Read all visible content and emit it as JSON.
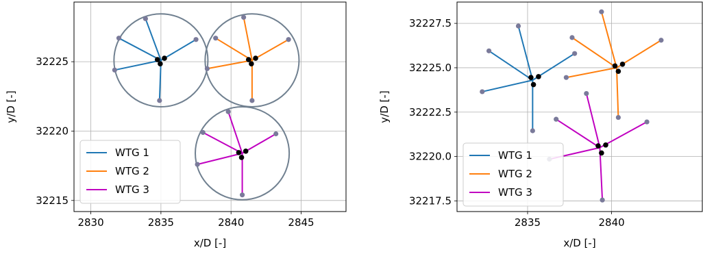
{
  "chart_data": [
    {
      "type": "scatter",
      "title": "",
      "xlabel": "x/D [-]",
      "ylabel": "y/D [-]",
      "xlim": [
        2828.8,
        2848.2
      ],
      "ylim": [
        32214.2,
        32229.3
      ],
      "xticks": [
        "2830",
        "2835",
        "2840",
        "2845"
      ],
      "xtick_values": [
        2830,
        2835,
        2840,
        2845
      ],
      "yticks": [
        "32215",
        "32220",
        "32225"
      ],
      "ytick_values": [
        32215,
        32220,
        32225
      ],
      "grid": true,
      "legend": {
        "placement": "lower-left",
        "entries": [
          "WTG 1",
          "WTG 2",
          "WTG 3"
        ]
      },
      "rotor_circle_color": "#708090",
      "series": [
        {
          "name": "WTG 1",
          "color": "#1f77b4",
          "hub": [
            2835.0,
            32225.1
          ],
          "hub_markers": [
            [
              2834.75,
              32225.15
            ],
            [
              2835.25,
              32225.25
            ],
            [
              2834.95,
              32224.85
            ]
          ],
          "blade_tips": [
            [
              2831.7,
              32224.4
            ],
            [
              2832.0,
              32226.7
            ],
            [
              2833.9,
              32228.1
            ],
            [
              2837.5,
              32226.6
            ],
            [
              2834.9,
              32222.2
            ]
          ],
          "rotor_radius": 3.35
        },
        {
          "name": "WTG 2",
          "color": "#ff7f0e",
          "hub": [
            2841.5,
            32225.1
          ],
          "hub_markers": [
            [
              2841.25,
              32225.15
            ],
            [
              2841.75,
              32225.25
            ],
            [
              2841.45,
              32224.85
            ]
          ],
          "blade_tips": [
            [
              2838.3,
              32224.5
            ],
            [
              2838.9,
              32226.7
            ],
            [
              2840.9,
              32228.2
            ],
            [
              2844.1,
              32226.6
            ],
            [
              2841.5,
              32222.2
            ]
          ],
          "rotor_radius": 3.35
        },
        {
          "name": "WTG 3",
          "color": "#c000c0",
          "hub": [
            2840.8,
            32218.4
          ],
          "hub_markers": [
            [
              2840.55,
              32218.45
            ],
            [
              2841.05,
              32218.55
            ],
            [
              2840.75,
              32218.1
            ]
          ],
          "blade_tips": [
            [
              2837.6,
              32217.6
            ],
            [
              2838.0,
              32219.9
            ],
            [
              2839.8,
              32221.4
            ],
            [
              2843.2,
              32219.8
            ],
            [
              2840.8,
              32215.4
            ]
          ],
          "rotor_radius": 3.35
        }
      ]
    },
    {
      "type": "scatter",
      "title": "",
      "xlabel": "x/D [-]",
      "ylabel": "y/D [-]",
      "xlim": [
        2830.8,
        2845.4
      ],
      "ylim": [
        32216.9,
        32228.7
      ],
      "xticks": [
        "2835",
        "2840"
      ],
      "xtick_values": [
        2835,
        2840
      ],
      "yticks": [
        "32217.5",
        "32220.0",
        "32222.5",
        "32225.0",
        "32227.5"
      ],
      "ytick_values": [
        32217.5,
        32220.0,
        32222.5,
        32225.0,
        32227.5
      ],
      "grid": true,
      "legend": {
        "placement": "lower-left",
        "entries": [
          "WTG 1",
          "WTG 2",
          "WTG 3"
        ]
      },
      "series": [
        {
          "name": "WTG 1",
          "color": "#1f77b4",
          "hub": [
            2835.3,
            32224.3
          ],
          "hub_markers": [
            [
              2835.2,
              32224.45
            ],
            [
              2835.65,
              32224.5
            ],
            [
              2835.35,
              32224.05
            ]
          ],
          "blade_tips": [
            [
              2832.3,
              32223.65
            ],
            [
              2832.7,
              32225.95
            ],
            [
              2834.45,
              32227.35
            ],
            [
              2837.8,
              32225.8
            ],
            [
              2835.3,
              32221.45
            ]
          ]
        },
        {
          "name": "WTG 2",
          "color": "#ff7f0e",
          "hub": [
            2840.3,
            32225.0
          ],
          "hub_markers": [
            [
              2840.2,
              32225.1
            ],
            [
              2840.65,
              32225.2
            ],
            [
              2840.4,
              32224.8
            ]
          ],
          "blade_tips": [
            [
              2837.3,
              32224.45
            ],
            [
              2837.65,
              32226.7
            ],
            [
              2839.4,
              32228.15
            ],
            [
              2842.95,
              32226.55
            ],
            [
              2840.4,
              32222.2
            ]
          ]
        },
        {
          "name": "WTG 3",
          "color": "#c000c0",
          "hub": [
            2839.3,
            32220.5
          ],
          "hub_markers": [
            [
              2839.2,
              32220.6
            ],
            [
              2839.65,
              32220.65
            ],
            [
              2839.4,
              32220.2
            ]
          ],
          "blade_tips": [
            [
              2836.3,
              32219.85
            ],
            [
              2836.7,
              32222.1
            ],
            [
              2838.5,
              32223.55
            ],
            [
              2842.1,
              32221.95
            ],
            [
              2839.45,
              32217.55
            ]
          ]
        }
      ]
    }
  ]
}
